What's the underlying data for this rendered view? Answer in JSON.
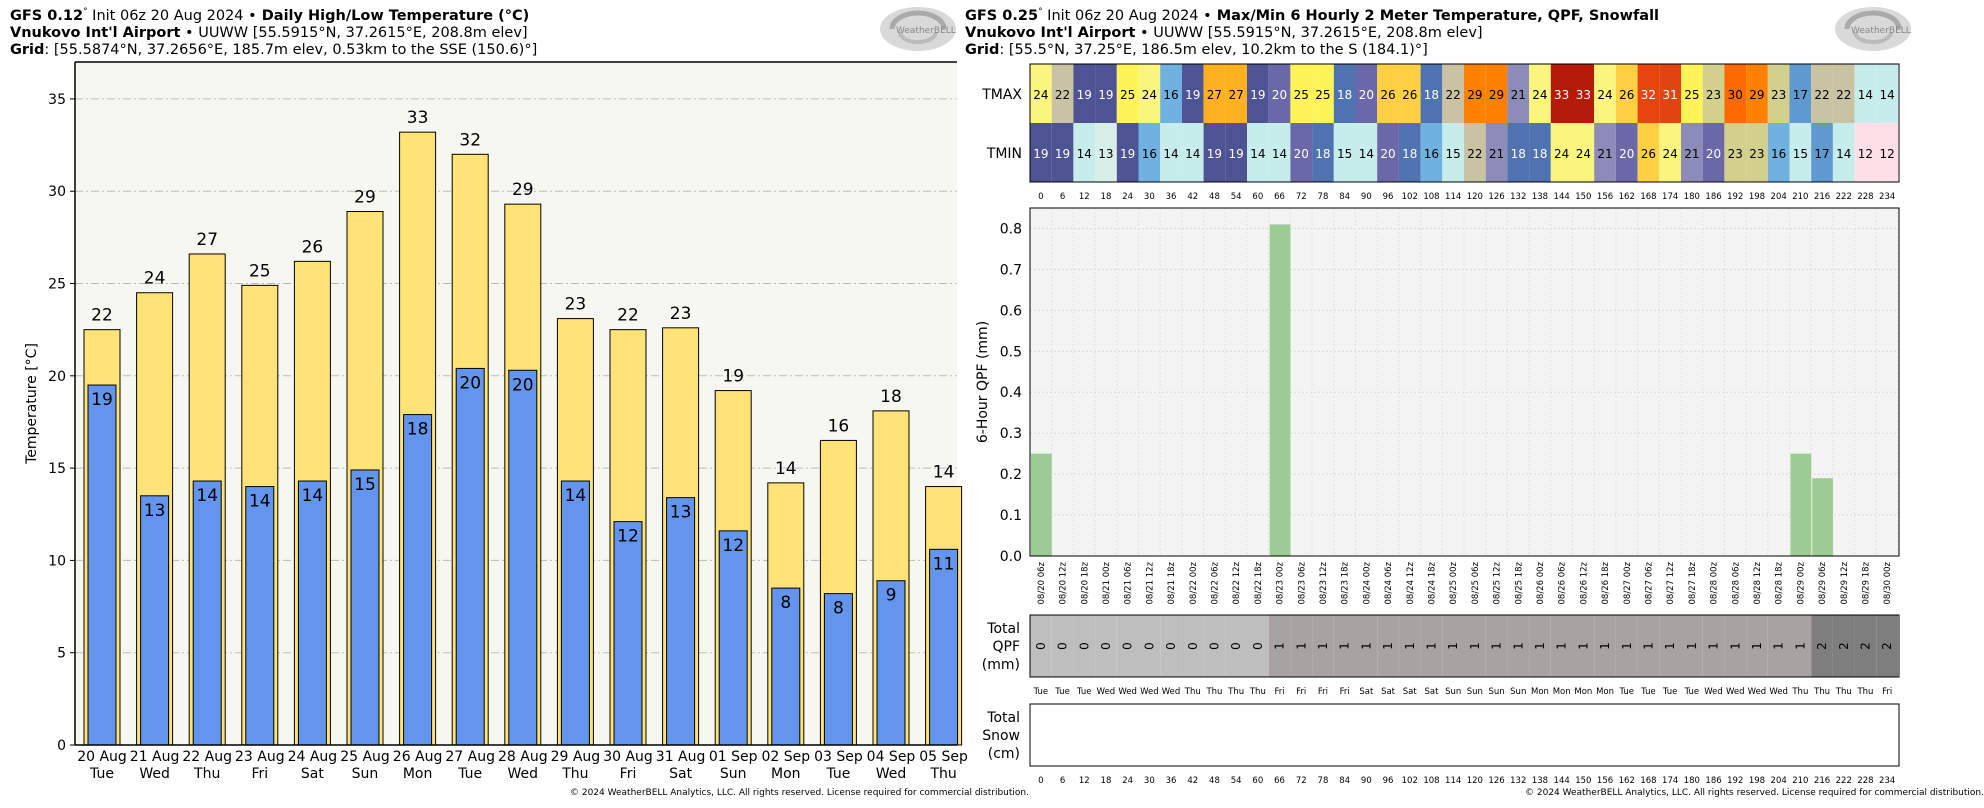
{
  "left": {
    "header": {
      "model": "GFS 0.12",
      "deg": "°",
      "init": " Init 06z 20 Aug 2024 ",
      "bullet": "•",
      "title": " Daily High/Low Temperature (°C)",
      "station_name": "Vnukovo Int'l Airport",
      "station_info": " UUWW [55.5915°N, 37.2615°E, 208.8m elev]",
      "grid_label": "Grid",
      "grid_info": ": [55.5874°N, 37.2656°E, 185.7m elev, 0.53km to the SSE (150.6)°]"
    },
    "logo_text": "WeatherBELL",
    "copyright": "© 2024 WeatherBELL Analytics, LLC. All rights reserved. License required for commercial distribution.",
    "chart_data": {
      "type": "bar",
      "ylabel": "Temperature [°C]",
      "ylim": [
        0,
        37
      ],
      "yticks": [
        0,
        5,
        10,
        15,
        20,
        25,
        30,
        35
      ],
      "grid": true,
      "categories": [
        "20 Aug",
        "21 Aug",
        "22 Aug",
        "23 Aug",
        "24 Aug",
        "25 Aug",
        "26 Aug",
        "27 Aug",
        "28 Aug",
        "29 Aug",
        "30 Aug",
        "31 Aug",
        "01 Sep",
        "02 Sep",
        "03 Sep",
        "04 Sep",
        "05 Sep"
      ],
      "weekdays": [
        "Tue",
        "Wed",
        "Thu",
        "Fri",
        "Sat",
        "Sun",
        "Mon",
        "Tue",
        "Wed",
        "Thu",
        "Fri",
        "Sat",
        "Sun",
        "Mon",
        "Tue",
        "Wed",
        "Thu"
      ],
      "series": [
        {
          "name": "High",
          "color": "#ffe377",
          "values": [
            22.5,
            24.5,
            26.6,
            24.9,
            26.2,
            28.9,
            33.2,
            32.0,
            29.3,
            23.1,
            22.5,
            22.6,
            19.2,
            14.2,
            16.5,
            18.1,
            14.0
          ],
          "labels": [
            "22",
            "24",
            "27",
            "25",
            "26",
            "29",
            "33",
            "32",
            "29",
            "23",
            "22",
            "23",
            "19",
            "14",
            "16",
            "18",
            "14"
          ]
        },
        {
          "name": "Low",
          "color": "#6495ed",
          "values": [
            19.5,
            13.5,
            14.3,
            14.0,
            14.3,
            14.9,
            17.9,
            20.4,
            20.3,
            14.3,
            12.1,
            13.4,
            11.6,
            8.5,
            8.2,
            8.9,
            10.6
          ],
          "labels": [
            "19",
            "13",
            "14",
            "14",
            "14",
            "15",
            "18",
            "20",
            "20",
            "14",
            "12",
            "13",
            "12",
            "8",
            "8",
            "9",
            "11"
          ]
        }
      ]
    }
  },
  "right": {
    "header": {
      "model": "GFS 0.25",
      "deg": "°",
      "init": " Init 06z 20 Aug 2024 ",
      "bullet": "•",
      "title": " Max/Min 6 Hourly 2 Meter Temperature, QPF, Snowfall",
      "station_name": "Vnukovo Int'l Airport",
      "station_info": " UUWW [55.5915°N, 37.2615°E, 208.8m elev]",
      "grid_label": "Grid",
      "grid_info": ": [55.5°N, 37.25°E, 186.5m elev, 10.2km to the S (184.1)°]"
    },
    "logo_text": "WeatherBELL",
    "copyright": "© 2024 WeatherBELL Analytics, LLC. All rights reserved. License required for commercial distribution.",
    "chart_data": [
      {
        "type": "heatmap",
        "rows": [
          "TMAX",
          "TMIN"
        ],
        "x": [
          0,
          6,
          12,
          18,
          24,
          30,
          36,
          42,
          48,
          54,
          60,
          66,
          72,
          78,
          84,
          90,
          96,
          102,
          108,
          114,
          120,
          126,
          132,
          138,
          144,
          150,
          156,
          162,
          168,
          174,
          180,
          186,
          192,
          198,
          204,
          210,
          216,
          222,
          228,
          234
        ],
        "tmax": [
          24,
          22,
          19,
          19,
          25,
          24,
          16,
          19,
          27,
          27,
          19,
          20,
          25,
          25,
          18,
          20,
          26,
          26,
          18,
          22,
          29,
          29,
          21,
          24,
          33,
          33,
          24,
          26,
          32,
          31,
          25,
          23,
          30,
          29,
          23,
          17,
          22,
          22,
          14,
          14
        ],
        "tmin": [
          19,
          19,
          14,
          13,
          19,
          16,
          14,
          14,
          19,
          19,
          14,
          14,
          20,
          18,
          15,
          14,
          20,
          18,
          16,
          15,
          22,
          21,
          18,
          18,
          24,
          24,
          21,
          20,
          26,
          24,
          21,
          20,
          23,
          23,
          16,
          15,
          17,
          14,
          12,
          12
        ]
      },
      {
        "type": "bar",
        "ylabel": "6-Hour QPF (mm)",
        "ylim": [
          0,
          0.85
        ],
        "yticks": [
          "0.0",
          "0.1",
          "0.2",
          "0.3",
          "0.4",
          "0.5",
          "0.6",
          "0.7",
          "0.8"
        ],
        "grid": true,
        "color": "#9ccc94",
        "categories": [
          "08/20 06z",
          "08/20 12z",
          "08/20 18z",
          "08/21 00z",
          "08/21 06z",
          "08/21 12z",
          "08/21 18z",
          "08/22 00z",
          "08/22 06z",
          "08/22 12z",
          "08/22 18z",
          "08/23 00z",
          "08/23 06z",
          "08/23 12z",
          "08/23 18z",
          "08/24 00z",
          "08/24 06z",
          "08/24 12z",
          "08/24 18z",
          "08/25 00z",
          "08/25 06z",
          "08/25 12z",
          "08/25 18z",
          "08/26 00z",
          "08/26 06z",
          "08/26 12z",
          "08/26 18z",
          "08/27 00z",
          "08/27 06z",
          "08/27 12z",
          "08/27 18z",
          "08/28 00z",
          "08/28 06z",
          "08/28 12z",
          "08/28 18z",
          "08/29 00z",
          "08/29 06z",
          "08/29 12z",
          "08/29 18z",
          "08/30 00z"
        ],
        "values": [
          0.25,
          0,
          0,
          0,
          0,
          0,
          0,
          0,
          0,
          0,
          0,
          0.81,
          0,
          0,
          0,
          0,
          0,
          0,
          0,
          0,
          0,
          0,
          0,
          0,
          0,
          0,
          0,
          0,
          0,
          0,
          0,
          0,
          0,
          0,
          0,
          0.25,
          0.19,
          0,
          0,
          0
        ]
      },
      {
        "type": "table",
        "label": [
          "Total",
          "QPF",
          "(mm)"
        ],
        "values": [
          "0",
          "0",
          "0",
          "0",
          "0",
          "0",
          "0",
          "0",
          "0",
          "0",
          "0",
          "1",
          "1",
          "1",
          "1",
          "1",
          "1",
          "1",
          "1",
          "1",
          "1",
          "1",
          "1",
          "1",
          "1",
          "1",
          "1",
          "1",
          "1",
          "1",
          "1",
          "1",
          "1",
          "1",
          "1",
          "1",
          "2",
          "2",
          "2",
          "2"
        ],
        "colors": {
          "0": "#bebebe",
          "1": "#a8a3a3",
          "2": "#7e7e7e"
        },
        "weekdays": [
          "Tue",
          "Tue",
          "Tue",
          "Wed",
          "Wed",
          "Wed",
          "Wed",
          "Thu",
          "Thu",
          "Thu",
          "Thu",
          "Fri",
          "Fri",
          "Fri",
          "Fri",
          "Sat",
          "Sat",
          "Sat",
          "Sat",
          "Sun",
          "Sun",
          "Sun",
          "Sun",
          "Mon",
          "Mon",
          "Mon",
          "Mon",
          "Tue",
          "Tue",
          "Tue",
          "Tue",
          "Wed",
          "Wed",
          "Wed",
          "Wed",
          "Thu",
          "Thu",
          "Thu",
          "Thu",
          "Fri"
        ]
      },
      {
        "type": "table",
        "label": [
          "Total",
          "Snow",
          "(cm)"
        ],
        "values": []
      }
    ]
  }
}
